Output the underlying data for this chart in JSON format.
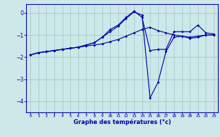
{
  "xlabel": "Graphe des températures (°c)",
  "bg_color": "#cce8e8",
  "grid_color": "#aacccc",
  "line_color": "#0000aa",
  "xlim": [
    -0.5,
    23.5
  ],
  "ylim": [
    -4.5,
    0.4
  ],
  "yticks": [
    0,
    -1,
    -2,
    -3,
    -4
  ],
  "xticks": [
    0,
    1,
    2,
    3,
    4,
    5,
    6,
    7,
    8,
    9,
    10,
    11,
    12,
    13,
    14,
    15,
    16,
    17,
    18,
    19,
    20,
    21,
    22,
    23
  ],
  "series1_x": [
    0,
    1,
    2,
    3,
    4,
    5,
    6,
    7,
    8,
    9,
    10,
    11,
    12,
    13,
    14,
    15,
    16,
    17,
    18,
    19,
    20,
    21,
    22,
    23
  ],
  "series1_y": [
    -1.9,
    -1.8,
    -1.75,
    -1.7,
    -1.65,
    -1.6,
    -1.55,
    -1.5,
    -1.45,
    -1.4,
    -1.3,
    -1.2,
    -1.05,
    -0.9,
    -0.75,
    -0.65,
    -0.8,
    -0.9,
    -1.0,
    -1.05,
    -1.1,
    -1.05,
    -1.0,
    -1.0
  ],
  "series2_x": [
    0,
    1,
    2,
    3,
    4,
    5,
    6,
    7,
    8,
    9,
    10,
    11,
    12,
    13,
    14,
    15,
    16,
    17,
    18,
    19,
    20,
    21,
    22,
    23
  ],
  "series2_y": [
    -1.9,
    -1.8,
    -1.75,
    -1.7,
    -1.65,
    -1.6,
    -1.55,
    -1.45,
    -1.35,
    -1.1,
    -0.85,
    -0.6,
    -0.25,
    0.05,
    -0.1,
    -3.85,
    -3.15,
    -1.75,
    -1.1,
    -1.05,
    -1.15,
    -1.1,
    -1.0,
    -1.0
  ],
  "series3_x": [
    0,
    1,
    2,
    3,
    4,
    5,
    6,
    7,
    8,
    9,
    10,
    11,
    12,
    13,
    14,
    15,
    16,
    17,
    18,
    19,
    20,
    21,
    22,
    23
  ],
  "series3_y": [
    -1.9,
    -1.8,
    -1.75,
    -1.7,
    -1.65,
    -1.6,
    -1.55,
    -1.45,
    -1.35,
    -1.1,
    -0.75,
    -0.55,
    -0.2,
    0.08,
    -0.2,
    -1.7,
    -1.65,
    -1.65,
    -0.85,
    -0.85,
    -0.85,
    -0.55,
    -0.9,
    -0.95
  ]
}
